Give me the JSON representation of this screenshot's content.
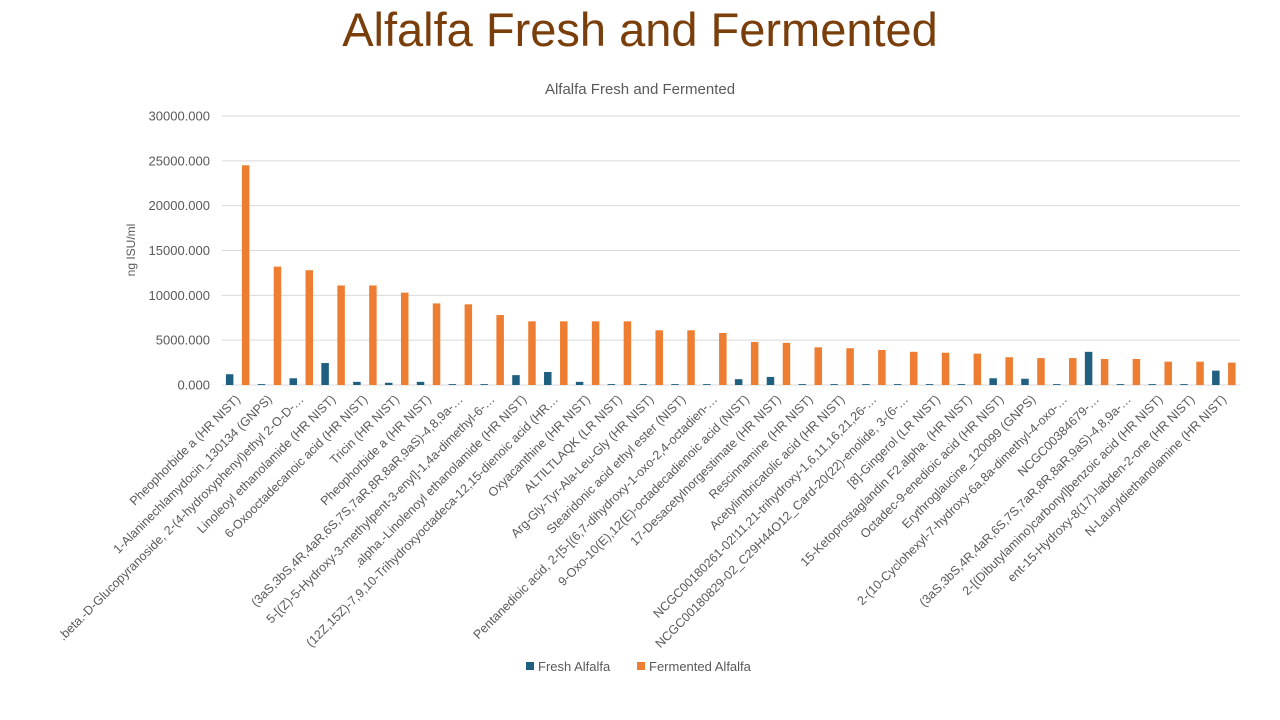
{
  "slide": {
    "title": "Alfalfa Fresh and Fermented"
  },
  "colors": {
    "fresh": "#1f5f7f",
    "fermented": "#ed7d31",
    "grid": "#d9d9d9",
    "text": "#595959",
    "slide_title": "#7a3e0b"
  },
  "chart_data": {
    "type": "bar",
    "title": "Alfalfa Fresh and Fermented",
    "xlabel": "",
    "ylabel": "ng ISU/ml",
    "ylim": [
      0,
      30000
    ],
    "yticks": [
      "0.000",
      "5000.000",
      "10000.000",
      "15000.000",
      "20000.000",
      "25000.000",
      "30000.000"
    ],
    "grid": true,
    "legend_position": "bottom",
    "categories": [
      "Pheophorbide a (HR NIST)",
      "1-Alaninechlamydocin_130134 (GNPS)",
      ".beta.-D-Glucopyranoside, 2-(4-hydroxyphenyl)ethyl 2-O-D-…",
      "Linoleoyl ethanolamide (HR NIST)",
      "6-Oxooctadecanoic acid (HR NIST)",
      "Tricin (HR NIST)",
      "Pheophorbide a (HR NIST)",
      "(3aS,3bS,4R,4aR,6S,7S,7aR,8R,8aR,9aS)-4,8,9a-…",
      "5-[(Z)-5-Hydroxy-3-methylpent-3-enyl]-1,4a-dimethyl-6-…",
      ".alpha.-Linolenoyl ethanolamide (HR NIST)",
      "(12Z,15Z)-7,9,10-Trihydroxyoctadeca-12,15-dienoic acid (HR…",
      "Oxyacanthine (HR NIST)",
      "ALTILTLAQK (LR NIST)",
      "Arg-Gly-Tyr-Ala-Leu-Gly (HR NIST)",
      "Stearidonic acid ethyl ester (NIST)",
      "Pentanedioic acid, 2-[5-[(6,7-dihydroxy-1-oxo-2,4-octadien-…",
      "9-Oxo-10(E),12(E)-octadecadienoic acid (NIST)",
      "17-Desacetylnorgestimate (HR NIST)",
      "Rescinnamine (HR NIST)",
      "Acetylimbricatolic acid (HR NIST)",
      "NCGC00180261-02!11,21-trihydroxy-1,6,11,16,21,26-…",
      "NCGC00180829-02_C29H44O12_Card-20(22)-enolide, 3-(6-…",
      "[8]-Gingerol (LR NIST)",
      "15-Ketoprostaglandin F2.alpha. (HR NIST)",
      "Octadec-9-enedioic acid (HR NIST)",
      "Erythroglaucine_120099 (GNPS)",
      "2-(10-Cyclohexyl-7-hydroxy-6a,8a-dimethyl-4-oxo-…",
      "NCGC00384679-…",
      "(3aS,3bS,4R,4aR,6S,7S,7aR,8R,8aR,9aS)-4,8,9a-…",
      "2-[(Dibutylamino)carbonyl]benzoic acid (HR NIST)",
      "ent-15-Hydroxy-8(17)-labden-2-one (HR NIST)",
      "N-Lauryldiethanolamine (HR NIST)"
    ],
    "series": [
      {
        "name": "Fresh Alfalfa",
        "values": [
          1200,
          100,
          750,
          2450,
          350,
          250,
          350,
          100,
          100,
          1100,
          1450,
          350,
          100,
          100,
          100,
          100,
          650,
          900,
          100,
          100,
          100,
          100,
          100,
          100,
          750,
          700,
          100,
          3700,
          100,
          100,
          100,
          1600
        ]
      },
      {
        "name": "Fermented Alfalfa",
        "values": [
          24500,
          13200,
          12800,
          11100,
          11100,
          10300,
          9100,
          9000,
          7800,
          7100,
          7100,
          7100,
          7100,
          6100,
          6100,
          5800,
          4800,
          4700,
          4200,
          4100,
          3900,
          3700,
          3600,
          3500,
          3100,
          3000,
          3000,
          2900,
          2900,
          2600,
          2600,
          2500
        ]
      }
    ]
  }
}
